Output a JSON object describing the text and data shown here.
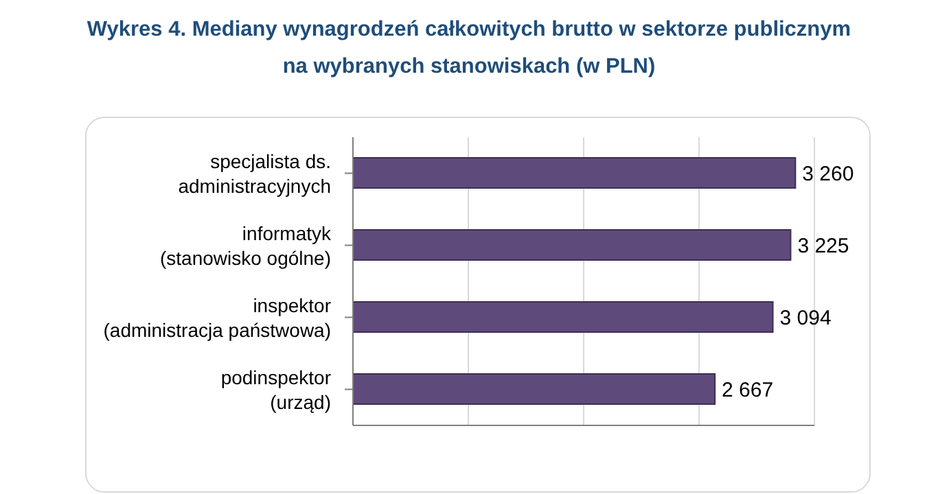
{
  "chart_data": {
    "type": "bar",
    "orientation": "horizontal",
    "title": "Wykres 4. Mediany wynagrodzeń całkowitych brutto w sektorze publicznym\nna wybranych stanowiskach (w PLN)",
    "categories": [
      "specjalista ds.\nadministracyjnych",
      "informatyk\n(stanowisko ogólne)",
      "inspektor\n(administracja państwowa)",
      "podinspektor\n(urząd)"
    ],
    "values": [
      3260,
      3225,
      3094,
      2667
    ],
    "value_labels": [
      "3 260",
      "3 225",
      "3 094",
      "2 667"
    ],
    "color": "#5f4b7b",
    "tick_labels": "y",
    "grid": "x",
    "legend": false
  }
}
